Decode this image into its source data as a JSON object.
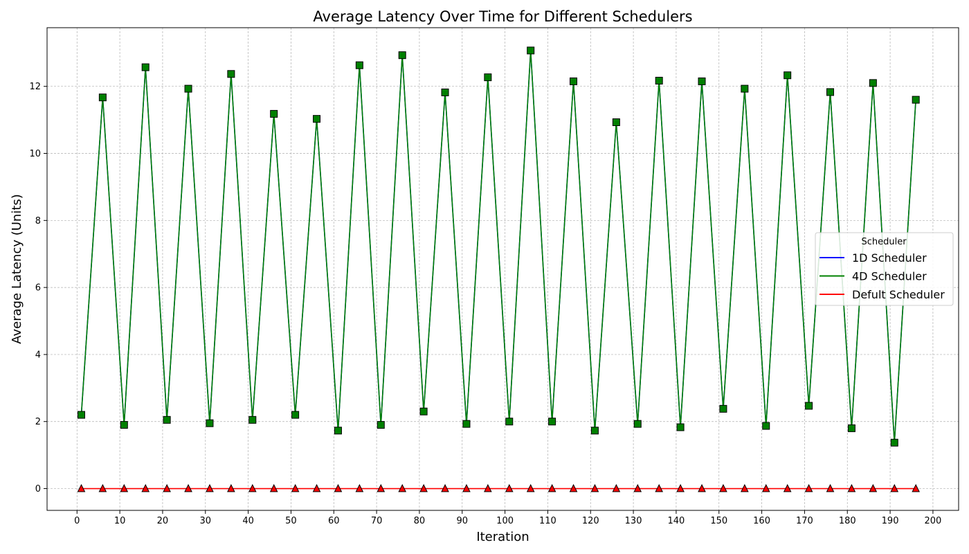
{
  "chart_data": {
    "type": "line",
    "title": "Average Latency Over Time for Different Schedulers",
    "xlabel": "Iteration",
    "ylabel": "Average Latency (Units)",
    "xlim": [
      -7,
      206
    ],
    "ylim": [
      -0.65,
      13.75
    ],
    "xticks": [
      0,
      10,
      20,
      30,
      40,
      50,
      60,
      70,
      80,
      90,
      100,
      110,
      120,
      130,
      140,
      150,
      160,
      170,
      180,
      190,
      200
    ],
    "yticks": [
      0,
      2,
      4,
      6,
      8,
      10,
      12
    ],
    "grid": true,
    "legend": {
      "title": "Scheduler",
      "placement": "center-right"
    },
    "x": [
      1,
      6,
      11,
      16,
      21,
      26,
      31,
      36,
      41,
      46,
      51,
      56,
      61,
      66,
      71,
      76,
      81,
      86,
      91,
      96,
      101,
      106,
      111,
      116,
      121,
      126,
      131,
      136,
      141,
      146,
      151,
      156,
      161,
      166,
      171,
      176,
      181,
      186,
      191,
      196
    ],
    "series": [
      {
        "name": "1D Scheduler",
        "color": "#0000ff",
        "marker": "none",
        "values": [
          2.2,
          11.67,
          1.9,
          12.57,
          2.05,
          11.93,
          1.95,
          12.37,
          2.05,
          11.18,
          2.2,
          11.03,
          1.73,
          12.63,
          1.9,
          12.93,
          2.3,
          11.82,
          1.93,
          12.27,
          2.0,
          13.07,
          2.0,
          12.15,
          1.73,
          10.93,
          1.93,
          12.17,
          1.83,
          12.15,
          2.38,
          11.93,
          1.87,
          12.33,
          2.47,
          11.83,
          1.8,
          12.1,
          1.37,
          11.6
        ]
      },
      {
        "name": "4D Scheduler",
        "color": "#008000",
        "marker": "square",
        "values": [
          2.2,
          11.67,
          1.9,
          12.57,
          2.05,
          11.93,
          1.95,
          12.37,
          2.05,
          11.18,
          2.2,
          11.03,
          1.73,
          12.63,
          1.9,
          12.93,
          2.3,
          11.82,
          1.93,
          12.27,
          2.0,
          13.07,
          2.0,
          12.15,
          1.73,
          10.93,
          1.93,
          12.17,
          1.83,
          12.15,
          2.38,
          11.93,
          1.87,
          12.33,
          2.47,
          11.83,
          1.8,
          12.1,
          1.37,
          11.6
        ]
      },
      {
        "name": "Defult Scheduler",
        "color": "#ff0000",
        "marker": "triangle",
        "values": [
          0,
          0,
          0,
          0,
          0,
          0,
          0,
          0,
          0,
          0,
          0,
          0,
          0,
          0,
          0,
          0,
          0,
          0,
          0,
          0,
          0,
          0,
          0,
          0,
          0,
          0,
          0,
          0,
          0,
          0,
          0,
          0,
          0,
          0,
          0,
          0,
          0,
          0,
          0,
          0
        ]
      }
    ]
  }
}
